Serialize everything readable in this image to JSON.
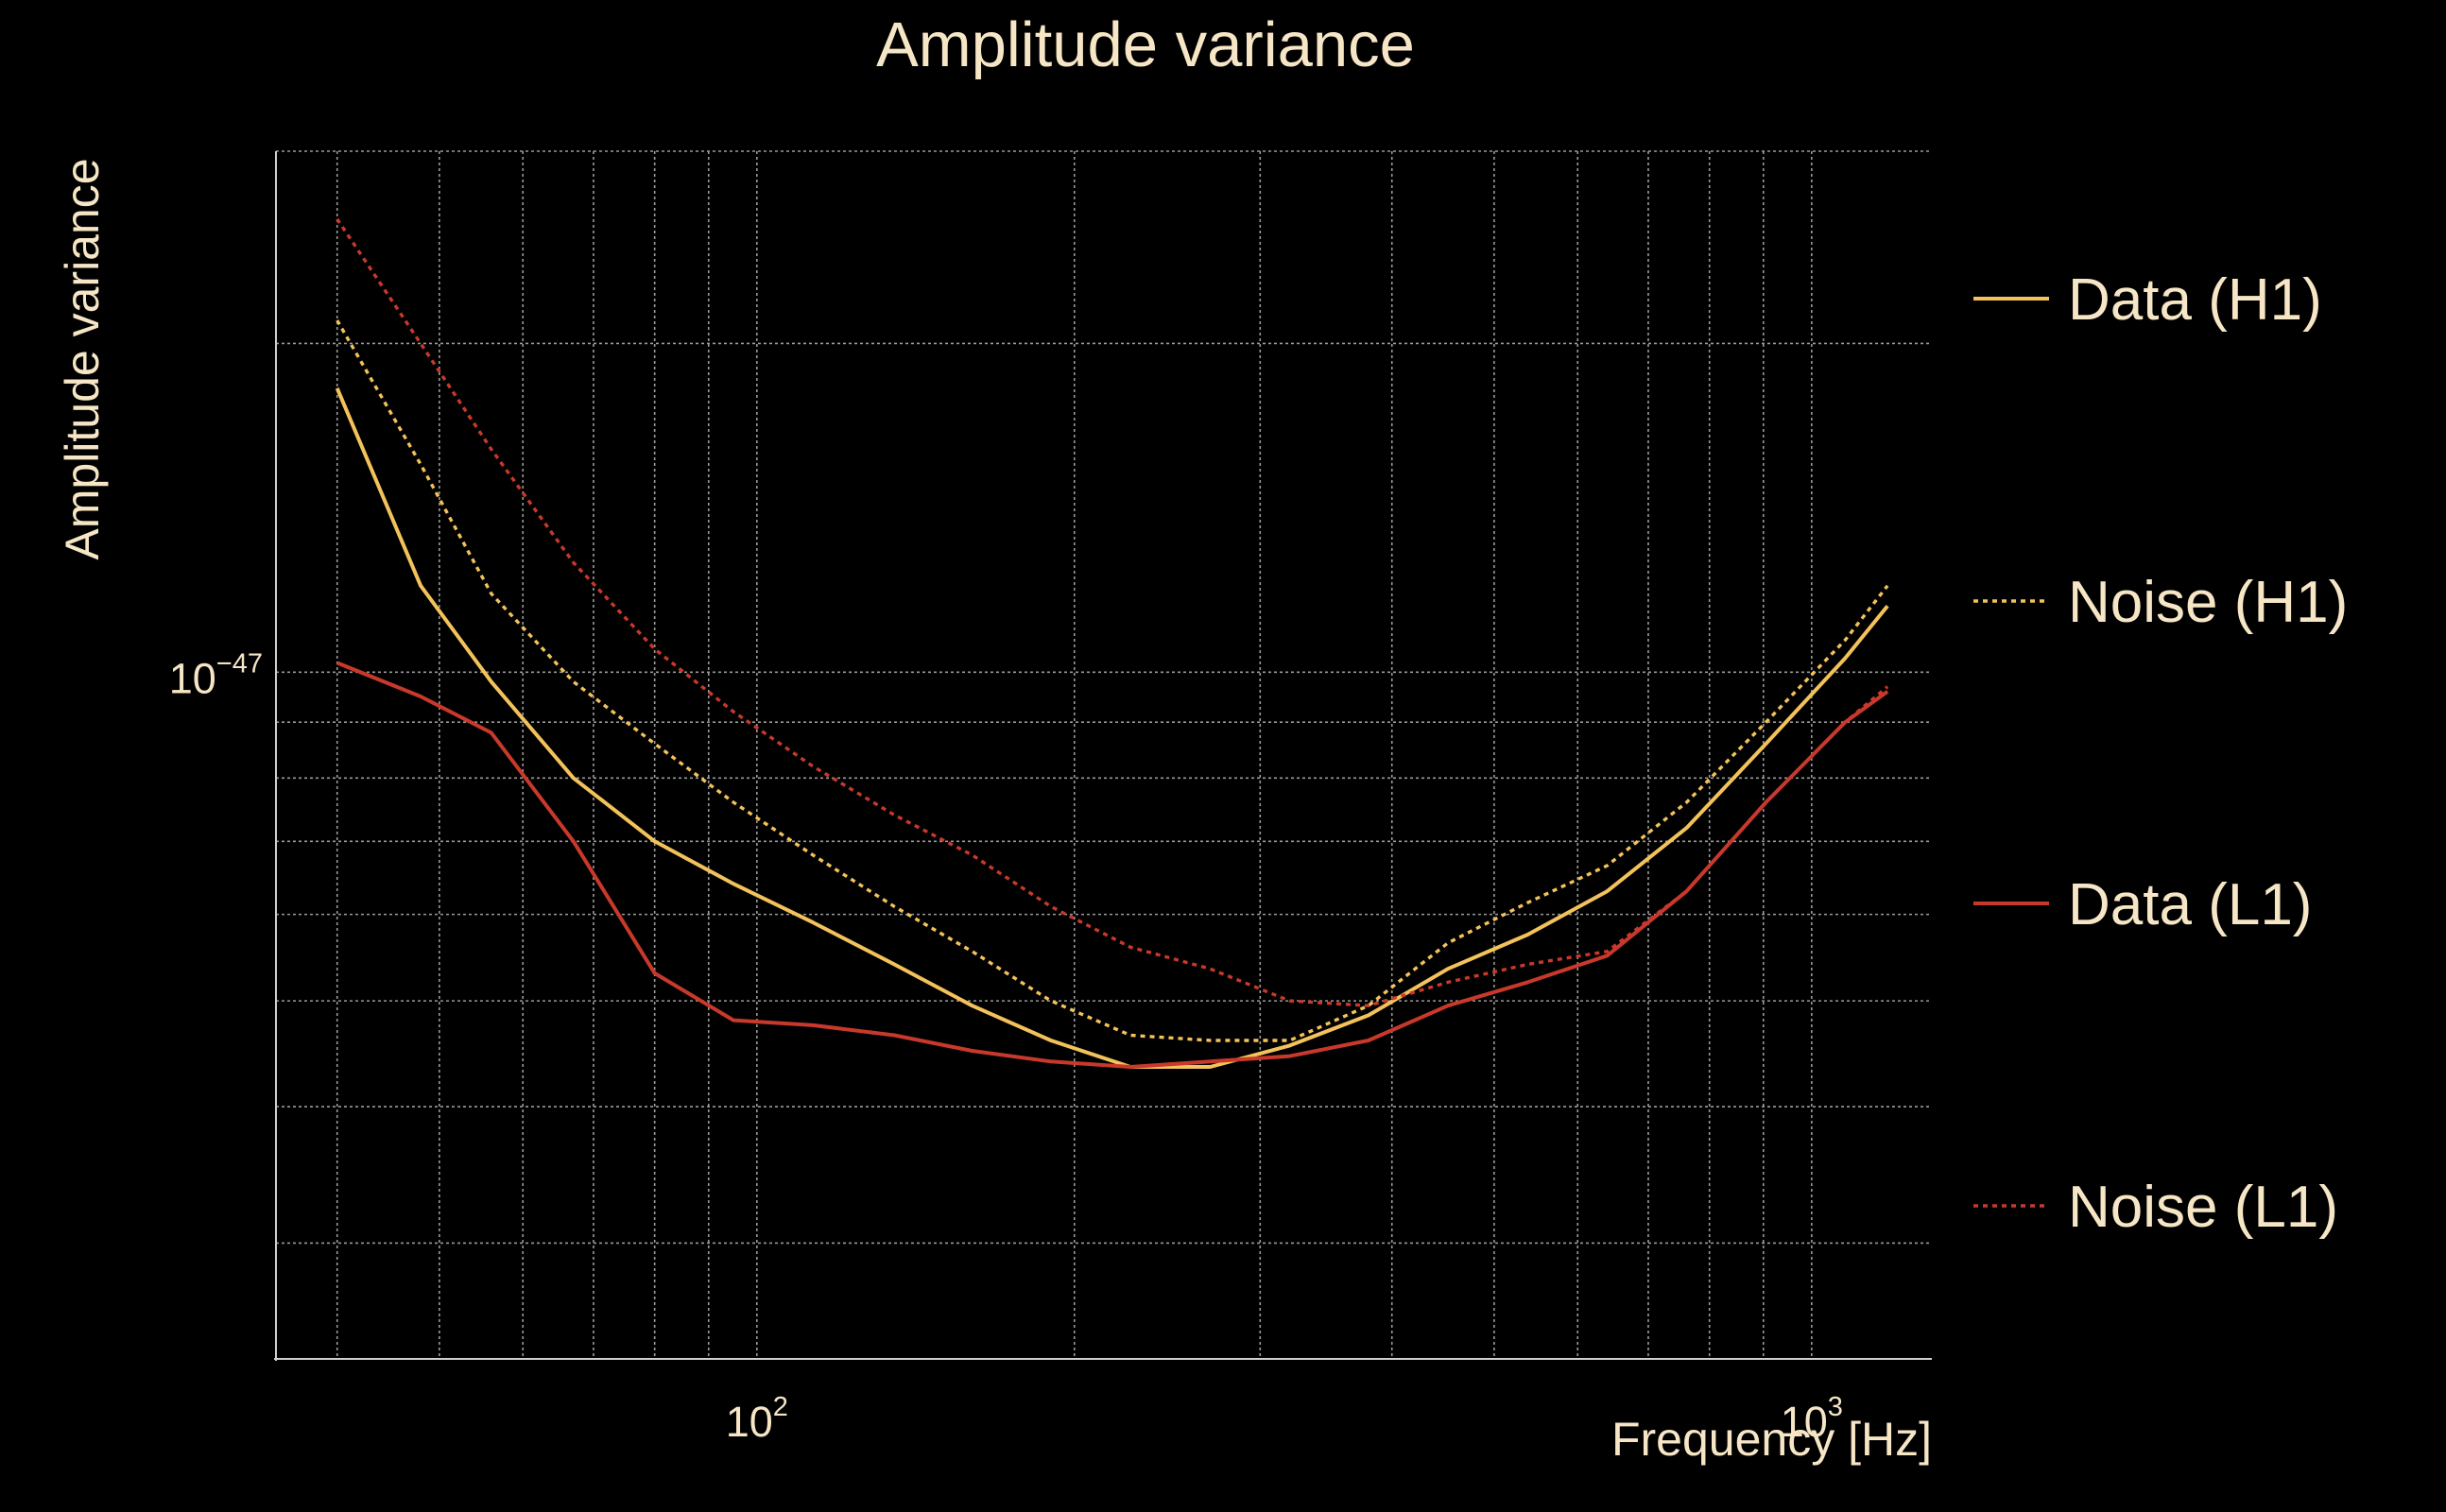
{
  "chart_data": {
    "type": "line",
    "title": "Amplitude variance",
    "xlabel": "Frequency [Hz]",
    "ylabel": "Amplitude variance",
    "x_scale": "log",
    "y_scale": "log",
    "xlim": [
      35,
      1300
    ],
    "ylim": [
      2.35e-48,
      3e-47
    ],
    "x_ticks": [
      {
        "base": "10",
        "exp": "2",
        "value": 100
      },
      {
        "base": "10",
        "exp": "3",
        "value": 1000
      }
    ],
    "y_ticks": [
      {
        "base": "10",
        "exp": "−47",
        "value": 1e-47
      }
    ],
    "grid": true,
    "legend_position": "right",
    "x": [
      40,
      48,
      56,
      67,
      80,
      95,
      113,
      135,
      160,
      190,
      226,
      269,
      320,
      380,
      452,
      538,
      640,
      761,
      905,
      1076,
      1180
    ],
    "series": [
      {
        "name": "Data (H1)",
        "color": "#f3c25a",
        "style": "solid",
        "values": [
          1.82e-47,
          1.2e-47,
          9.8e-48,
          8e-48,
          7e-48,
          6.4e-48,
          5.9e-48,
          5.4e-48,
          4.95e-48,
          4.6e-48,
          4.35e-48,
          4.35e-48,
          4.55e-48,
          4.85e-48,
          5.35e-48,
          5.75e-48,
          6.3e-48,
          7.2e-48,
          8.6e-48,
          1.03e-47,
          1.15e-47
        ]
      },
      {
        "name": "Noise (H1)",
        "color": "#f3c25a",
        "style": "dotted",
        "values": [
          2.1e-47,
          1.55e-47,
          1.18e-47,
          9.8e-48,
          8.6e-48,
          7.6e-48,
          6.8e-48,
          6.1e-48,
          5.55e-48,
          5e-48,
          4.65e-48,
          4.6e-48,
          4.6e-48,
          4.95e-48,
          5.65e-48,
          6.15e-48,
          6.65e-48,
          7.6e-48,
          9e-48,
          1.07e-47,
          1.2e-47
        ]
      },
      {
        "name": "Data (L1)",
        "color": "#c8392b",
        "style": "solid",
        "values": [
          1.02e-47,
          9.5e-48,
          8.8e-48,
          7e-48,
          5.3e-48,
          4.8e-48,
          4.75e-48,
          4.65e-48,
          4.5e-48,
          4.4e-48,
          4.35e-48,
          4.4e-48,
          4.45e-48,
          4.6e-48,
          4.95e-48,
          5.2e-48,
          5.5e-48,
          6.3e-48,
          7.6e-48,
          9e-48,
          9.6e-48
        ]
      },
      {
        "name": "Noise (L1)",
        "color": "#c8392b",
        "style": "dotted",
        "values": [
          2.6e-47,
          2e-47,
          1.6e-47,
          1.26e-47,
          1.05e-47,
          9.2e-48,
          8.2e-48,
          7.4e-48,
          6.8e-48,
          6.1e-48,
          5.6e-48,
          5.35e-48,
          5e-48,
          4.95e-48,
          5.2e-48,
          5.4e-48,
          5.55e-48,
          6.3e-48,
          7.6e-48,
          9e-48,
          9.7e-48
        ]
      }
    ]
  }
}
